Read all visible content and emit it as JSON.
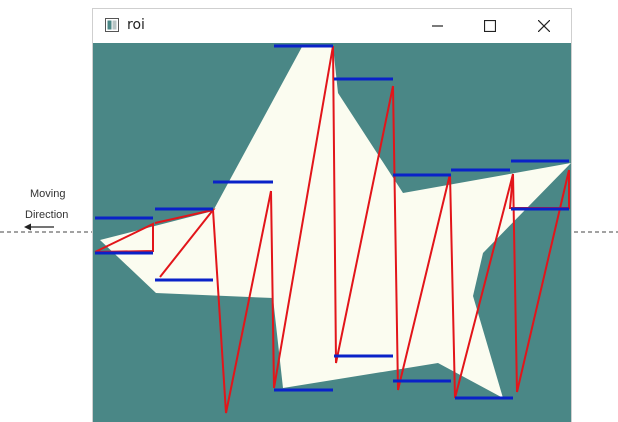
{
  "window": {
    "title": "roi"
  },
  "icons": {
    "app": "window-app-icon",
    "minimize": "minimize-icon",
    "maximize": "maximize-icon",
    "close": "close-icon"
  },
  "annotation": {
    "line1": "Moving",
    "line2": "Direction"
  },
  "colors": {
    "background": "#4a8786",
    "star": "#fbfcf0",
    "scan_lines": "#e2151a",
    "boundaries": "#0a22c8"
  }
}
